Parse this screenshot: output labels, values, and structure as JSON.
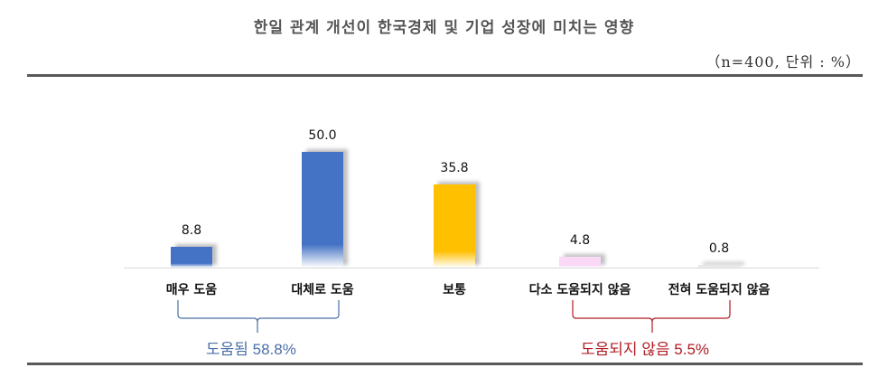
{
  "title": "한일 관계 개선이 한국경제 및 기업 성장에 미치는 영향",
  "subtitle": "（n=400,  단위 : %）",
  "chart_data": {
    "type": "bar",
    "title": "한일 관계 개선이 한국경제 및 기업 성장에 미치는 영향",
    "subtitle": "(n=400, 단위 : %)",
    "categories": [
      "매우 도움",
      "대체로 도움",
      "보통",
      "다소 도움되지 않음",
      "전혀 도움되지 않음"
    ],
    "values": [
      8.8,
      50.0,
      35.8,
      4.8,
      0.8
    ],
    "value_labels": [
      "8.8",
      "50.0",
      "35.8",
      "4.8",
      "0.8"
    ],
    "colors": [
      "#4472c4",
      "#4472c4",
      "#ffc000",
      "#f9d9f5",
      "#e6e6e6"
    ],
    "xlabel": "",
    "ylabel": "",
    "grid": false,
    "groups": [
      {
        "label": "도움됨 58.8%",
        "categories": [
          "매우 도움",
          "대체로 도움"
        ],
        "color": "#4a6fa5"
      },
      {
        "label": "도움되지 않음 5.5%",
        "categories": [
          "다소 도움되지 않음",
          "전혀 도움되지 않음"
        ],
        "color": "#b01c24"
      }
    ]
  }
}
